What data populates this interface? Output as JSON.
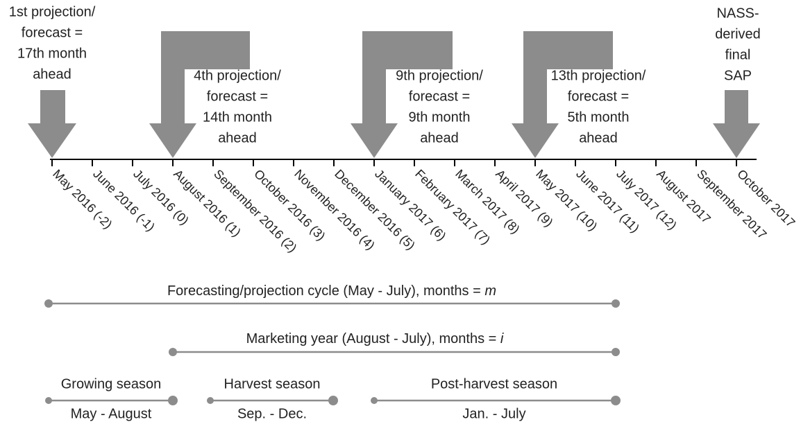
{
  "callouts": [
    {
      "lines": [
        "1st projection/",
        "forecast =",
        "17th month",
        "ahead"
      ]
    },
    {
      "lines": [
        "4th projection/",
        "forecast =",
        "14th month",
        "ahead"
      ]
    },
    {
      "lines": [
        "9th projection/",
        "forecast =",
        "9th month",
        "ahead"
      ]
    },
    {
      "lines": [
        "13th projection/",
        "forecast =",
        "5th month",
        "ahead"
      ]
    },
    {
      "lines": [
        "NASS-",
        "derived",
        "final",
        "SAP"
      ]
    }
  ],
  "months": [
    "May 2016 (-2)",
    "June 2016 (-1)",
    "July 2016 (0)",
    "August 2016 (1)",
    "September 2016 (2)",
    "October 2016 (3)",
    "November 2016 (4)",
    "December 2016 (5)",
    "January 2017 (6)",
    "February 2017 (7)",
    "March 2017 (8)",
    "April 2017 (9)",
    "May 2017 (10)",
    "June 2017 (11)",
    "July 2017 (12)",
    "August 2017",
    "September 2017",
    "October 2017"
  ],
  "periods": [
    {
      "label": "Forecasting/projection cycle (May - July), months = ",
      "variable": "m"
    },
    {
      "label": "Marketing year (August - July), months = ",
      "variable": "i"
    }
  ],
  "seasons": [
    {
      "label": "Growing season",
      "range": "May - August"
    },
    {
      "label": "Harvest season",
      "range": "Sep. - Dec."
    },
    {
      "label": "Post-harvest season",
      "range": "Jan. - July"
    }
  ]
}
